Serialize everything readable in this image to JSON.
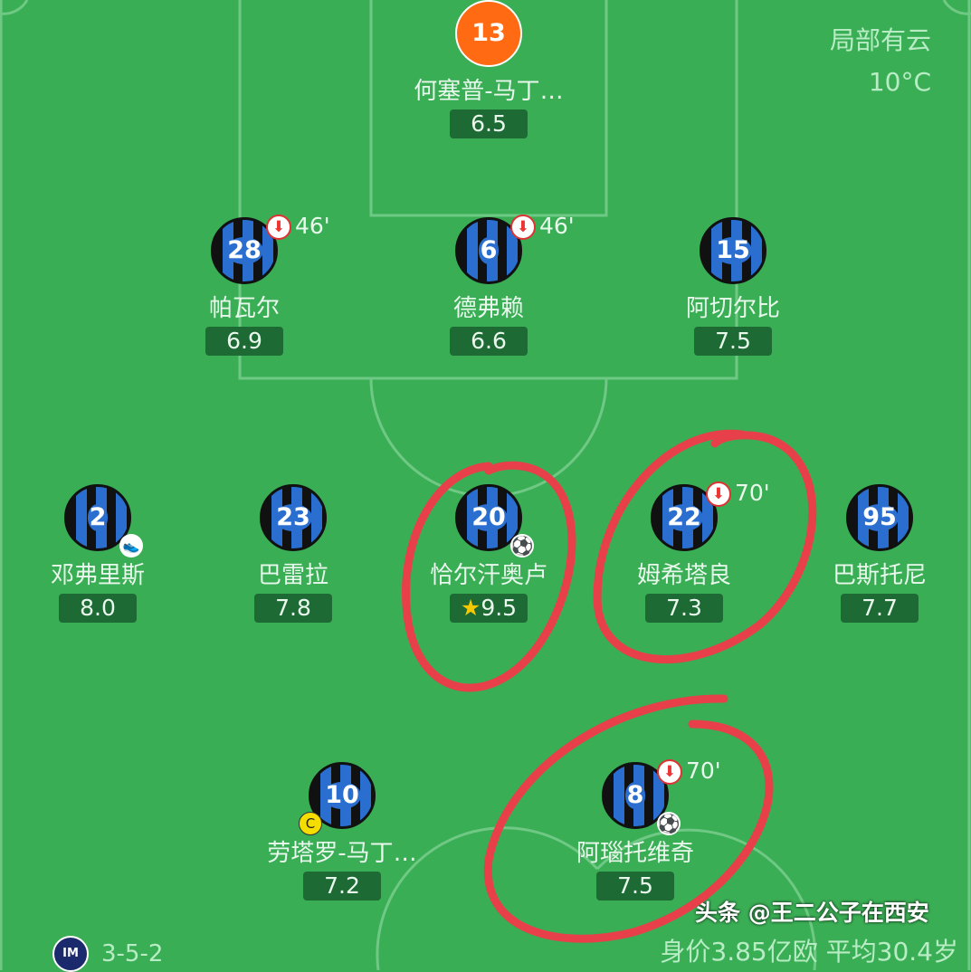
{
  "weather": {
    "condition": "局部有云",
    "temperature": "10°C"
  },
  "players": [
    {
      "number": "13",
      "name": "何塞普-马丁…",
      "rating": "6.5",
      "gk": true
    },
    {
      "number": "28",
      "name": "帕瓦尔",
      "rating": "6.9",
      "sub_out": "46'"
    },
    {
      "number": "6",
      "name": "德弗赖",
      "rating": "6.6",
      "sub_out": "46'"
    },
    {
      "number": "15",
      "name": "阿切尔比",
      "rating": "7.5"
    },
    {
      "number": "2",
      "name": "邓弗里斯",
      "rating": "8.0",
      "assist": true
    },
    {
      "number": "23",
      "name": "巴雷拉",
      "rating": "7.8"
    },
    {
      "number": "20",
      "name": "恰尔汗奥卢",
      "rating": "9.5",
      "goal": true,
      "motm": true
    },
    {
      "number": "22",
      "name": "姆希塔良",
      "rating": "7.3",
      "sub_out": "70'"
    },
    {
      "number": "95",
      "name": "巴斯托尼",
      "rating": "7.7"
    },
    {
      "number": "10",
      "name": "劳塔罗-马丁…",
      "rating": "7.2",
      "captain": "C"
    },
    {
      "number": "8",
      "name": "阿瑙托维奇",
      "rating": "7.5",
      "sub_out": "70'",
      "goal": true
    }
  ],
  "formation": "3-5-2",
  "team_logo": "inter-logo",
  "squad_value": "身价3.85亿欧  平均30.4岁",
  "watermark": "头条 @王二公子在西安",
  "colors": {
    "pitch": "#3aae55",
    "rating_bg": "#1e6a34",
    "goalkeeper": "#ff6a13",
    "annotation": "#e8404a"
  }
}
